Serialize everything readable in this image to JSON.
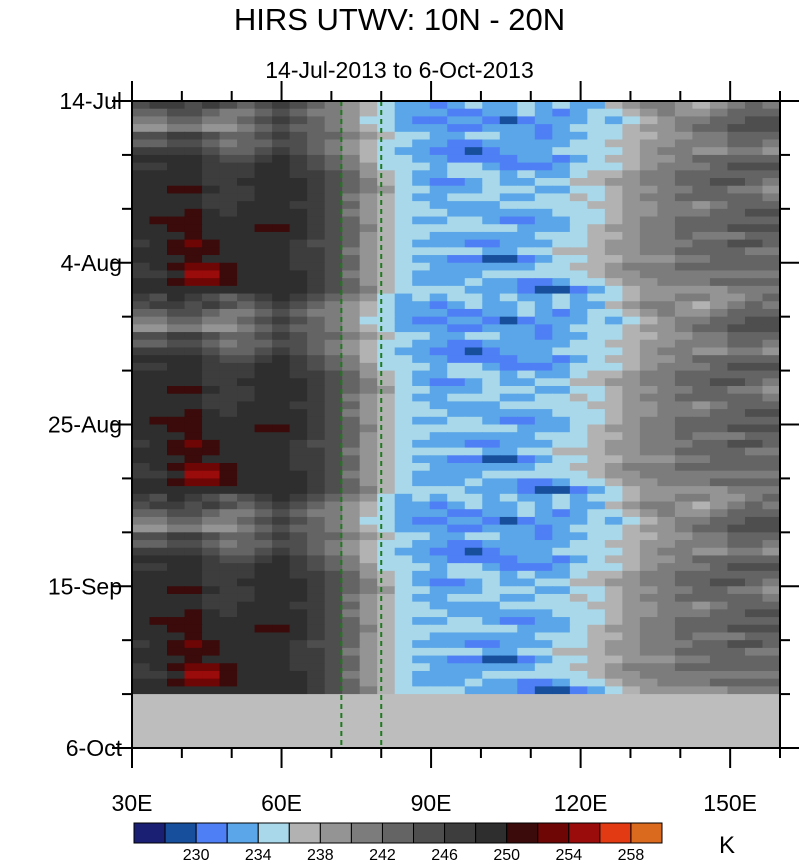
{
  "title": "HIRS UTWV: 10N - 20N",
  "subtitle": "14-Jul-2013 to 6-Oct-2013",
  "chart_data": {
    "type": "heatmap",
    "title": "HIRS UTWV: 10N - 20N",
    "subtitle": "14-Jul-2013 to 6-Oct-2013",
    "x_range": [
      30,
      160
    ],
    "x_unit": "degrees East",
    "x_ticks": [
      {
        "value": 30,
        "label": "30E"
      },
      {
        "value": 60,
        "label": "60E"
      },
      {
        "value": 90,
        "label": "90E"
      },
      {
        "value": 120,
        "label": "120E"
      },
      {
        "value": 150,
        "label": "150E"
      }
    ],
    "y_range_days": [
      0,
      84
    ],
    "y_ticks": [
      {
        "value": 0,
        "label": "14-Jul"
      },
      {
        "value": 21,
        "label": "4-Aug"
      },
      {
        "value": 42,
        "label": "25-Aug"
      },
      {
        "value": 63,
        "label": "15-Sep"
      },
      {
        "value": 84,
        "label": "6-Oct"
      }
    ],
    "missing_from_day": 77,
    "reference_lines_lon": [
      72,
      80
    ],
    "colorbar": {
      "unit": "K",
      "labels": [
        "230",
        "234",
        "238",
        "242",
        "246",
        "250",
        "254",
        "258"
      ],
      "colors": [
        "#1a1f73",
        "#174f9c",
        "#4f7ff5",
        "#5aa6e8",
        "#a9d8ea",
        "#b2b2b2",
        "#949494",
        "#7c7c7c",
        "#646464",
        "#4e4e4e",
        "#3d3d3d",
        "#2e2e2e",
        "#3b0a0a",
        "#6e0606",
        "#9a0b0b",
        "#e23a12",
        "#d96a1e"
      ]
    },
    "band_levels_tail": [
      [
        10,
        9,
        11,
        10,
        9,
        8,
        9,
        10,
        11,
        10,
        9,
        8,
        7,
        6,
        4,
        3,
        4,
        3,
        4,
        4,
        3,
        4,
        3,
        3,
        4,
        3,
        4,
        4,
        5,
        6,
        6,
        7,
        7,
        6,
        6,
        7,
        8
      ],
      [
        9,
        10,
        10,
        9,
        10,
        9,
        8,
        9,
        10,
        9,
        8,
        7,
        6,
        5,
        4,
        3,
        3,
        2,
        3,
        4,
        3,
        3,
        4,
        3,
        4,
        3,
        3,
        5,
        6,
        7,
        7,
        6,
        5,
        6,
        7,
        8,
        7
      ],
      [
        8,
        8,
        9,
        9,
        8,
        7,
        7,
        8,
        9,
        8,
        7,
        7,
        6,
        5,
        4,
        3,
        3,
        3,
        2,
        2,
        3,
        3,
        4,
        3,
        2,
        3,
        4,
        4,
        5,
        6,
        7,
        6,
        6,
        7,
        8,
        8,
        8
      ],
      [
        7,
        7,
        8,
        8,
        7,
        7,
        8,
        9,
        10,
        9,
        8,
        7,
        6,
        4,
        4,
        3,
        2,
        2,
        3,
        3,
        2,
        1,
        2,
        3,
        3,
        3,
        4,
        3,
        4,
        5,
        6,
        7,
        7,
        8,
        8,
        9,
        9
      ],
      [
        6,
        6,
        7,
        7,
        6,
        6,
        7,
        8,
        9,
        8,
        8,
        7,
        6,
        5,
        4,
        3,
        3,
        3,
        2,
        2,
        3,
        3,
        3,
        2,
        3,
        4,
        4,
        4,
        5,
        6,
        6,
        7,
        8,
        8,
        9,
        9,
        9
      ],
      [
        9,
        9,
        10,
        10,
        9,
        8,
        8,
        9,
        10,
        9,
        8,
        8,
        7,
        6,
        5,
        4,
        4,
        3,
        3,
        4,
        4,
        3,
        3,
        2,
        3,
        3,
        4,
        4,
        5,
        5,
        6,
        6,
        7,
        7,
        8,
        8,
        8
      ],
      [
        8,
        8,
        9,
        9,
        8,
        7,
        8,
        8,
        9,
        9,
        8,
        7,
        6,
        5,
        4,
        4,
        3,
        3,
        2,
        2,
        3,
        3,
        3,
        3,
        3,
        4,
        4,
        5,
        5,
        6,
        6,
        7,
        7,
        7,
        8,
        8,
        7
      ],
      [
        10,
        10,
        10,
        10,
        9,
        8,
        8,
        9,
        10,
        9,
        8,
        7,
        6,
        5,
        4,
        3,
        3,
        2,
        2,
        1,
        2,
        3,
        3,
        3,
        4,
        4,
        4,
        4,
        5,
        6,
        7,
        7,
        6,
        6,
        7,
        7,
        6
      ],
      [
        11,
        11,
        11,
        11,
        10,
        9,
        9,
        10,
        11,
        10,
        9,
        8,
        7,
        5,
        4,
        4,
        3,
        3,
        2,
        2,
        2,
        2,
        3,
        3,
        2,
        3,
        4,
        5,
        5,
        6,
        6,
        7,
        8,
        8,
        8,
        8,
        8
      ],
      [
        10,
        10,
        11,
        11,
        10,
        10,
        10,
        11,
        11,
        10,
        9,
        8,
        7,
        6,
        4,
        4,
        4,
        3,
        4,
        4,
        3,
        2,
        2,
        2,
        3,
        4,
        4,
        4,
        5,
        6,
        7,
        7,
        7,
        8,
        9,
        9,
        9
      ],
      [
        11,
        11,
        11,
        11,
        10,
        10,
        10,
        11,
        11,
        10,
        10,
        9,
        8,
        6,
        5,
        4,
        3,
        3,
        4,
        4,
        4,
        3,
        4,
        3,
        3,
        4,
        5,
        5,
        6,
        7,
        7,
        8,
        8,
        8,
        8,
        8,
        8
      ],
      [
        11,
        11,
        11,
        11,
        10,
        10,
        11,
        11,
        11,
        11,
        10,
        9,
        8,
        7,
        5,
        4,
        3,
        2,
        2,
        3,
        4,
        3,
        3,
        4,
        4,
        5,
        5,
        6,
        6,
        7,
        7,
        8,
        8,
        9,
        9,
        8,
        7
      ],
      [
        11,
        11,
        12,
        12,
        11,
        10,
        10,
        11,
        11,
        11,
        10,
        9,
        8,
        7,
        6,
        4,
        4,
        3,
        3,
        3,
        4,
        4,
        4,
        3,
        3,
        4,
        4,
        5,
        6,
        6,
        7,
        7,
        8,
        8,
        7,
        7,
        6
      ],
      [
        11,
        11,
        11,
        11,
        10,
        10,
        10,
        11,
        11,
        11,
        10,
        9,
        7,
        6,
        5,
        4,
        3,
        3,
        4,
        4,
        4,
        3,
        3,
        4,
        4,
        5,
        4,
        5,
        6,
        7,
        7,
        8,
        8,
        8,
        8,
        8,
        7
      ],
      [
        11,
        11,
        11,
        11,
        10,
        10,
        11,
        11,
        11,
        10,
        10,
        9,
        8,
        6,
        5,
        4,
        4,
        3,
        3,
        3,
        3,
        4,
        4,
        4,
        4,
        4,
        5,
        5,
        6,
        6,
        7,
        7,
        6,
        7,
        8,
        8,
        8
      ],
      [
        11,
        11,
        11,
        12,
        11,
        10,
        11,
        11,
        11,
        11,
        10,
        9,
        7,
        6,
        5,
        4,
        4,
        4,
        3,
        3,
        3,
        3,
        3,
        3,
        4,
        4,
        4,
        5,
        6,
        6,
        7,
        7,
        7,
        8,
        8,
        9,
        9
      ],
      [
        11,
        12,
        12,
        12,
        11,
        11,
        11,
        11,
        11,
        11,
        10,
        9,
        8,
        6,
        5,
        4,
        3,
        3,
        4,
        4,
        3,
        2,
        2,
        3,
        3,
        4,
        4,
        5,
        6,
        7,
        7,
        8,
        8,
        8,
        8,
        8,
        8
      ],
      [
        11,
        11,
        12,
        12,
        11,
        11,
        11,
        12,
        12,
        11,
        10,
        9,
        8,
        7,
        5,
        4,
        4,
        4,
        4,
        4,
        4,
        4,
        3,
        3,
        3,
        4,
        5,
        6,
        6,
        7,
        7,
        8,
        8,
        8,
        9,
        9,
        9
      ],
      [
        11,
        11,
        11,
        12,
        11,
        11,
        11,
        11,
        11,
        11,
        10,
        9,
        8,
        6,
        5,
        4,
        4,
        3,
        3,
        3,
        3,
        3,
        3,
        4,
        4,
        4,
        5,
        5,
        6,
        7,
        7,
        8,
        7,
        7,
        7,
        8,
        8
      ],
      [
        10,
        11,
        12,
        13,
        12,
        11,
        11,
        11,
        11,
        10,
        9,
        9,
        8,
        6,
        5,
        4,
        3,
        3,
        3,
        2,
        2,
        3,
        3,
        3,
        4,
        4,
        5,
        6,
        6,
        7,
        7,
        7,
        8,
        8,
        9,
        9,
        8
      ],
      [
        11,
        11,
        12,
        12,
        12,
        11,
        11,
        11,
        11,
        10,
        10,
        9,
        7,
        6,
        5,
        4,
        4,
        4,
        4,
        4,
        3,
        3,
        4,
        4,
        5,
        5,
        5,
        6,
        6,
        7,
        7,
        8,
        8,
        8,
        8,
        7,
        7
      ],
      [
        11,
        11,
        11,
        12,
        11,
        11,
        11,
        11,
        11,
        10,
        10,
        9,
        8,
        6,
        5,
        4,
        3,
        3,
        2,
        2,
        1,
        1,
        2,
        3,
        4,
        4,
        5,
        5,
        6,
        6,
        6,
        7,
        7,
        8,
        8,
        8,
        8
      ],
      [
        10,
        11,
        12,
        13,
        13,
        12,
        11,
        11,
        11,
        10,
        10,
        9,
        8,
        6,
        5,
        4,
        4,
        3,
        3,
        3,
        3,
        3,
        3,
        4,
        4,
        5,
        5,
        6,
        7,
        7,
        7,
        8,
        8,
        8,
        8,
        8,
        8
      ],
      [
        10,
        10,
        11,
        14,
        14,
        12,
        11,
        11,
        11,
        11,
        10,
        9,
        7,
        6,
        5,
        4,
        3,
        3,
        3,
        3,
        4,
        4,
        4,
        4,
        4,
        4,
        5,
        6,
        6,
        7,
        7,
        7,
        7,
        7,
        7,
        7,
        7
      ],
      [
        11,
        11,
        12,
        13,
        13,
        12,
        11,
        11,
        11,
        11,
        10,
        9,
        8,
        6,
        5,
        4,
        3,
        3,
        3,
        4,
        3,
        3,
        2,
        2,
        3,
        4,
        4,
        5,
        6,
        6,
        7,
        7,
        7,
        8,
        8,
        8,
        8
      ],
      [
        11,
        11,
        11,
        11,
        11,
        11,
        11,
        11,
        11,
        11,
        10,
        9,
        8,
        7,
        5,
        4,
        4,
        4,
        4,
        3,
        3,
        3,
        2,
        1,
        1,
        2,
        3,
        4,
        5,
        6,
        6,
        6,
        6,
        6,
        7,
        7,
        7
      ]
    ]
  }
}
